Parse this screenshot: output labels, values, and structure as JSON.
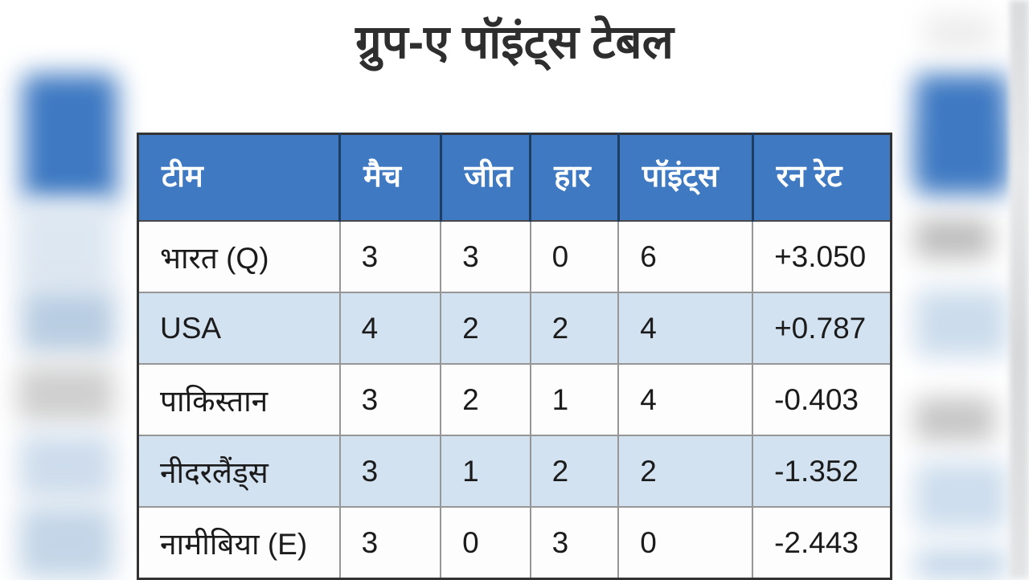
{
  "title": "ग्रुप-ए पॉइंट्स टेबल",
  "colors": {
    "header_bg": "#3e79c2",
    "header_separator": "#1d3d63",
    "row_alt_bg": "#d3e2f0",
    "row_bg": "#fdfdfd",
    "outer_border": "#333333",
    "cell_border": "#969696",
    "title_text": "#2e2e2e",
    "header_text": "#ffffff",
    "body_text": "#1b1b1b"
  },
  "table": {
    "columns": [
      {
        "key": "team",
        "label": "टीम"
      },
      {
        "key": "matches",
        "label": "मैच"
      },
      {
        "key": "wins",
        "label": "जीत"
      },
      {
        "key": "losses",
        "label": "हार"
      },
      {
        "key": "points",
        "label": "पॉइंट्स"
      },
      {
        "key": "run_rate",
        "label": "रन रेट"
      }
    ],
    "rows": [
      {
        "team": "भारत (Q)",
        "matches": "3",
        "wins": "3",
        "losses": "0",
        "points": "6",
        "run_rate": "+3.050"
      },
      {
        "team": "USA",
        "matches": "4",
        "wins": "2",
        "losses": "2",
        "points": "4",
        "run_rate": "+0.787"
      },
      {
        "team": "पाकिस्तान",
        "matches": "3",
        "wins": "2",
        "losses": "1",
        "points": "4",
        "run_rate": "-0.403"
      },
      {
        "team": "नीदरलैंड्स",
        "matches": "3",
        "wins": "1",
        "losses": "2",
        "points": "2",
        "run_rate": "-1.352"
      },
      {
        "team": "नामीबिया (E)",
        "matches": "3",
        "wins": "0",
        "losses": "3",
        "points": "0",
        "run_rate": "-2.443"
      }
    ]
  }
}
